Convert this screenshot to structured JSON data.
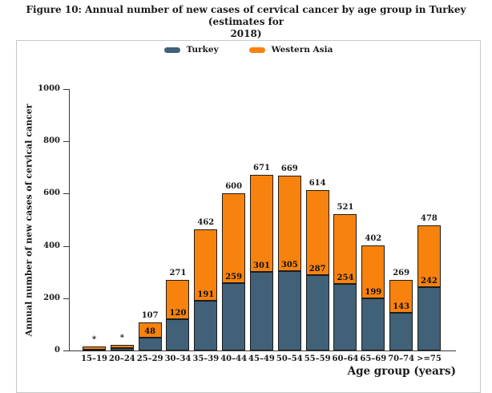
{
  "caption": {
    "line1": "Figure 10: Annual number of new cases of cervical cancer by age group in Turkey (estimates for",
    "line2": "2018)"
  },
  "chart_data": {
    "type": "bar",
    "stacked": true,
    "title": "Figure 10: Annual number of new cases of cervical cancer by age group in Turkey (estimates for 2018)",
    "categories": [
      "15–19",
      "20–24",
      "25–29",
      "30–34",
      "35–39",
      "40–44",
      "45–49",
      "50–54",
      "55–59",
      "60–64",
      "65–69",
      "70–74",
      ">=75"
    ],
    "series": [
      {
        "name": "Turkey",
        "color": "#406177",
        "values": [
          3,
          8,
          48,
          120,
          191,
          259,
          301,
          305,
          287,
          254,
          199,
          143,
          242
        ]
      },
      {
        "name": "Western Asia",
        "color": "#f7820e",
        "values": [
          12,
          14,
          59,
          151,
          271,
          341,
          370,
          364,
          327,
          267,
          203,
          126,
          236
        ]
      }
    ],
    "totals": [
      15,
      22,
      107,
      271,
      462,
      600,
      671,
      669,
      614,
      521,
      402,
      269,
      478
    ],
    "total_labels": [
      "*",
      "*",
      "107",
      "271",
      "462",
      "600",
      "671",
      "669",
      "614",
      "521",
      "402",
      "269",
      "478"
    ],
    "turkey_segment_labels": [
      "",
      "",
      "48",
      "120",
      "191",
      "259",
      "301",
      "305",
      "287",
      "254",
      "199",
      "143",
      "242"
    ],
    "ylabel": "Annual number of new cases of cervical cancer",
    "xlabel": "Age group (years)",
    "ylim": [
      0,
      1000
    ],
    "yticks": [
      0,
      200,
      400,
      600,
      800,
      1000
    ],
    "grid": false,
    "legend_position": "top-center",
    "colors": {
      "turkey": "#406177",
      "western_asia": "#f7820e",
      "bar_outline": "#1c1c1c",
      "axis": "#3a3a3a",
      "panel_border": "#c8c8c8",
      "text": "#1a1a1a"
    }
  }
}
